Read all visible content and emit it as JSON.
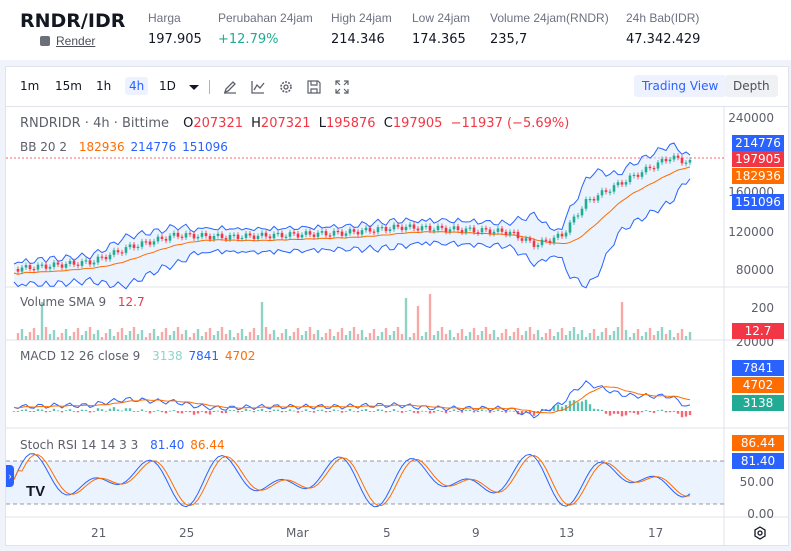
{
  "header": {
    "pair": "RNDR/IDR",
    "asset_link": "Render",
    "stats": [
      {
        "label": "Harga",
        "value": "197.905",
        "color": "#131722"
      },
      {
        "label": "Perubahan 24jam",
        "value": "+12.79%",
        "color": "#22ab94"
      },
      {
        "label": "High 24jam",
        "value": "214.346",
        "color": "#131722"
      },
      {
        "label": "Low 24jam",
        "value": "174.365",
        "color": "#131722"
      },
      {
        "label": "Volume 24jam(RNDR)",
        "value": "235,7",
        "color": "#131722"
      },
      {
        "label": "24h Bab(IDR)",
        "value": "47.342.429",
        "color": "#131722"
      }
    ]
  },
  "toolbar": {
    "timeframes": [
      "1m",
      "15m",
      "1h",
      "4h",
      "1D"
    ],
    "active_timeframe": "4h",
    "icons": [
      "dropdown-caret-icon",
      "drawing-pen-icon",
      "indicators-icon",
      "settings-gear-icon",
      "save-icon",
      "fullscreen-icon"
    ],
    "trading_view_label": "Trading View",
    "depth_label": "Depth"
  },
  "legend": {
    "symbol": "RNDRIDR · 4h · Bittime",
    "o_label": "O",
    "o": "207321",
    "h_label": "H",
    "h": "207321",
    "l_label": "L",
    "l": "195876",
    "c_label": "C",
    "c": "197905",
    "change": "−11937 (−5.69%)",
    "bb_label": "BB 20 2",
    "bb_basis": "182936",
    "bb_upper": "214776",
    "bb_lower": "151096",
    "volume_label": "Volume SMA 9",
    "volume_sma": "12.7",
    "macd_label": "MACD 12 26 close 9",
    "macd_hist": "3138",
    "macd_line": "7841",
    "macd_signal": "4702",
    "stoch_label": "Stoch RSI 14 14 3 3",
    "stoch_k": "81.40",
    "stoch_d": "86.44"
  },
  "price_axis": [
    "240000",
    "160000",
    "120000",
    "80000"
  ],
  "volume_axis": [
    "200"
  ],
  "macd_axis": [
    "20000"
  ],
  "stoch_axis": [
    "50.00",
    "0.00"
  ],
  "tags": {
    "upper": "214776",
    "last": "197905",
    "basis": "182936",
    "lower": "151096",
    "volume": "12.7",
    "macd_line": "7841",
    "macd_signal": "4702",
    "macd_hist": "3138",
    "stoch_d": "86.44",
    "stoch_k": "81.40"
  },
  "time_axis": [
    "21",
    "25",
    "Mar",
    "5",
    "9",
    "13",
    "17"
  ],
  "colors": {
    "up": "#22ab94",
    "down": "#f23645",
    "blue": "#2962ff",
    "orange": "#ff6d00",
    "accent": "#2962ff"
  },
  "branding": "TV"
}
